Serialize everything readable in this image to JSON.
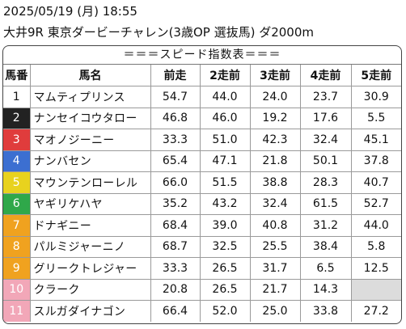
{
  "header": {
    "datetime": "2025/05/19 (月) 18:55",
    "race": "大井9R 東京ダービーチャレン(3歳OP 選抜馬) ダ2000m"
  },
  "table": {
    "title": "＝＝＝スピード指数表＝＝＝",
    "columns": [
      "馬番",
      "馬名",
      "前走",
      "2走前",
      "3走前",
      "4走前",
      "5走前"
    ],
    "rows": [
      {
        "no": "1",
        "name": "マムティプリンス",
        "bg": "#ffffff",
        "fg": "#111111",
        "v": [
          "54.7",
          "44.0",
          "24.0",
          "23.7",
          "30.9"
        ]
      },
      {
        "no": "2",
        "name": "ナンセイコウタロー",
        "bg": "#222222",
        "fg": "#ffffff",
        "v": [
          "46.8",
          "46.0",
          "19.2",
          "17.6",
          "5.5"
        ]
      },
      {
        "no": "3",
        "name": "マオノジーニー",
        "bg": "#e03c3c",
        "fg": "#ffffff",
        "v": [
          "33.3",
          "51.0",
          "42.3",
          "32.4",
          "45.1"
        ]
      },
      {
        "no": "4",
        "name": "ナンバセン",
        "bg": "#3c6fd1",
        "fg": "#ffffff",
        "v": [
          "65.4",
          "47.1",
          "21.8",
          "50.1",
          "37.8"
        ]
      },
      {
        "no": "5",
        "name": "マウンテンローレル",
        "bg": "#e8d21e",
        "fg": "#ffffff",
        "v": [
          "66.0",
          "51.5",
          "38.8",
          "28.3",
          "40.7"
        ]
      },
      {
        "no": "6",
        "name": "ヤギリケハヤ",
        "bg": "#2fa84a",
        "fg": "#ffffff",
        "v": [
          "35.2",
          "43.2",
          "32.4",
          "61.5",
          "52.7"
        ]
      },
      {
        "no": "7",
        "name": "ドナギニー",
        "bg": "#f0a21f",
        "fg": "#ffffff",
        "v": [
          "68.4",
          "39.0",
          "40.8",
          "31.2",
          "44.0"
        ]
      },
      {
        "no": "8",
        "name": "パルミジャーニノ",
        "bg": "#f0a21f",
        "fg": "#ffffff",
        "v": [
          "68.7",
          "32.5",
          "25.5",
          "38.4",
          "5.8"
        ]
      },
      {
        "no": "9",
        "name": "グリークトレジャー",
        "bg": "#f0a21f",
        "fg": "#ffffff",
        "v": [
          "33.3",
          "26.5",
          "31.7",
          "6.5",
          "12.5"
        ]
      },
      {
        "no": "10",
        "name": "クラーク",
        "bg": "#f2a7b8",
        "fg": "#ffffff",
        "v": [
          "20.8",
          "26.5",
          "21.7",
          "14.3",
          ""
        ]
      },
      {
        "no": "11",
        "name": "スルガダイナゴン",
        "bg": "#f2a7b8",
        "fg": "#ffffff",
        "v": [
          "66.4",
          "52.0",
          "25.0",
          "33.8",
          "27.2"
        ]
      }
    ]
  }
}
